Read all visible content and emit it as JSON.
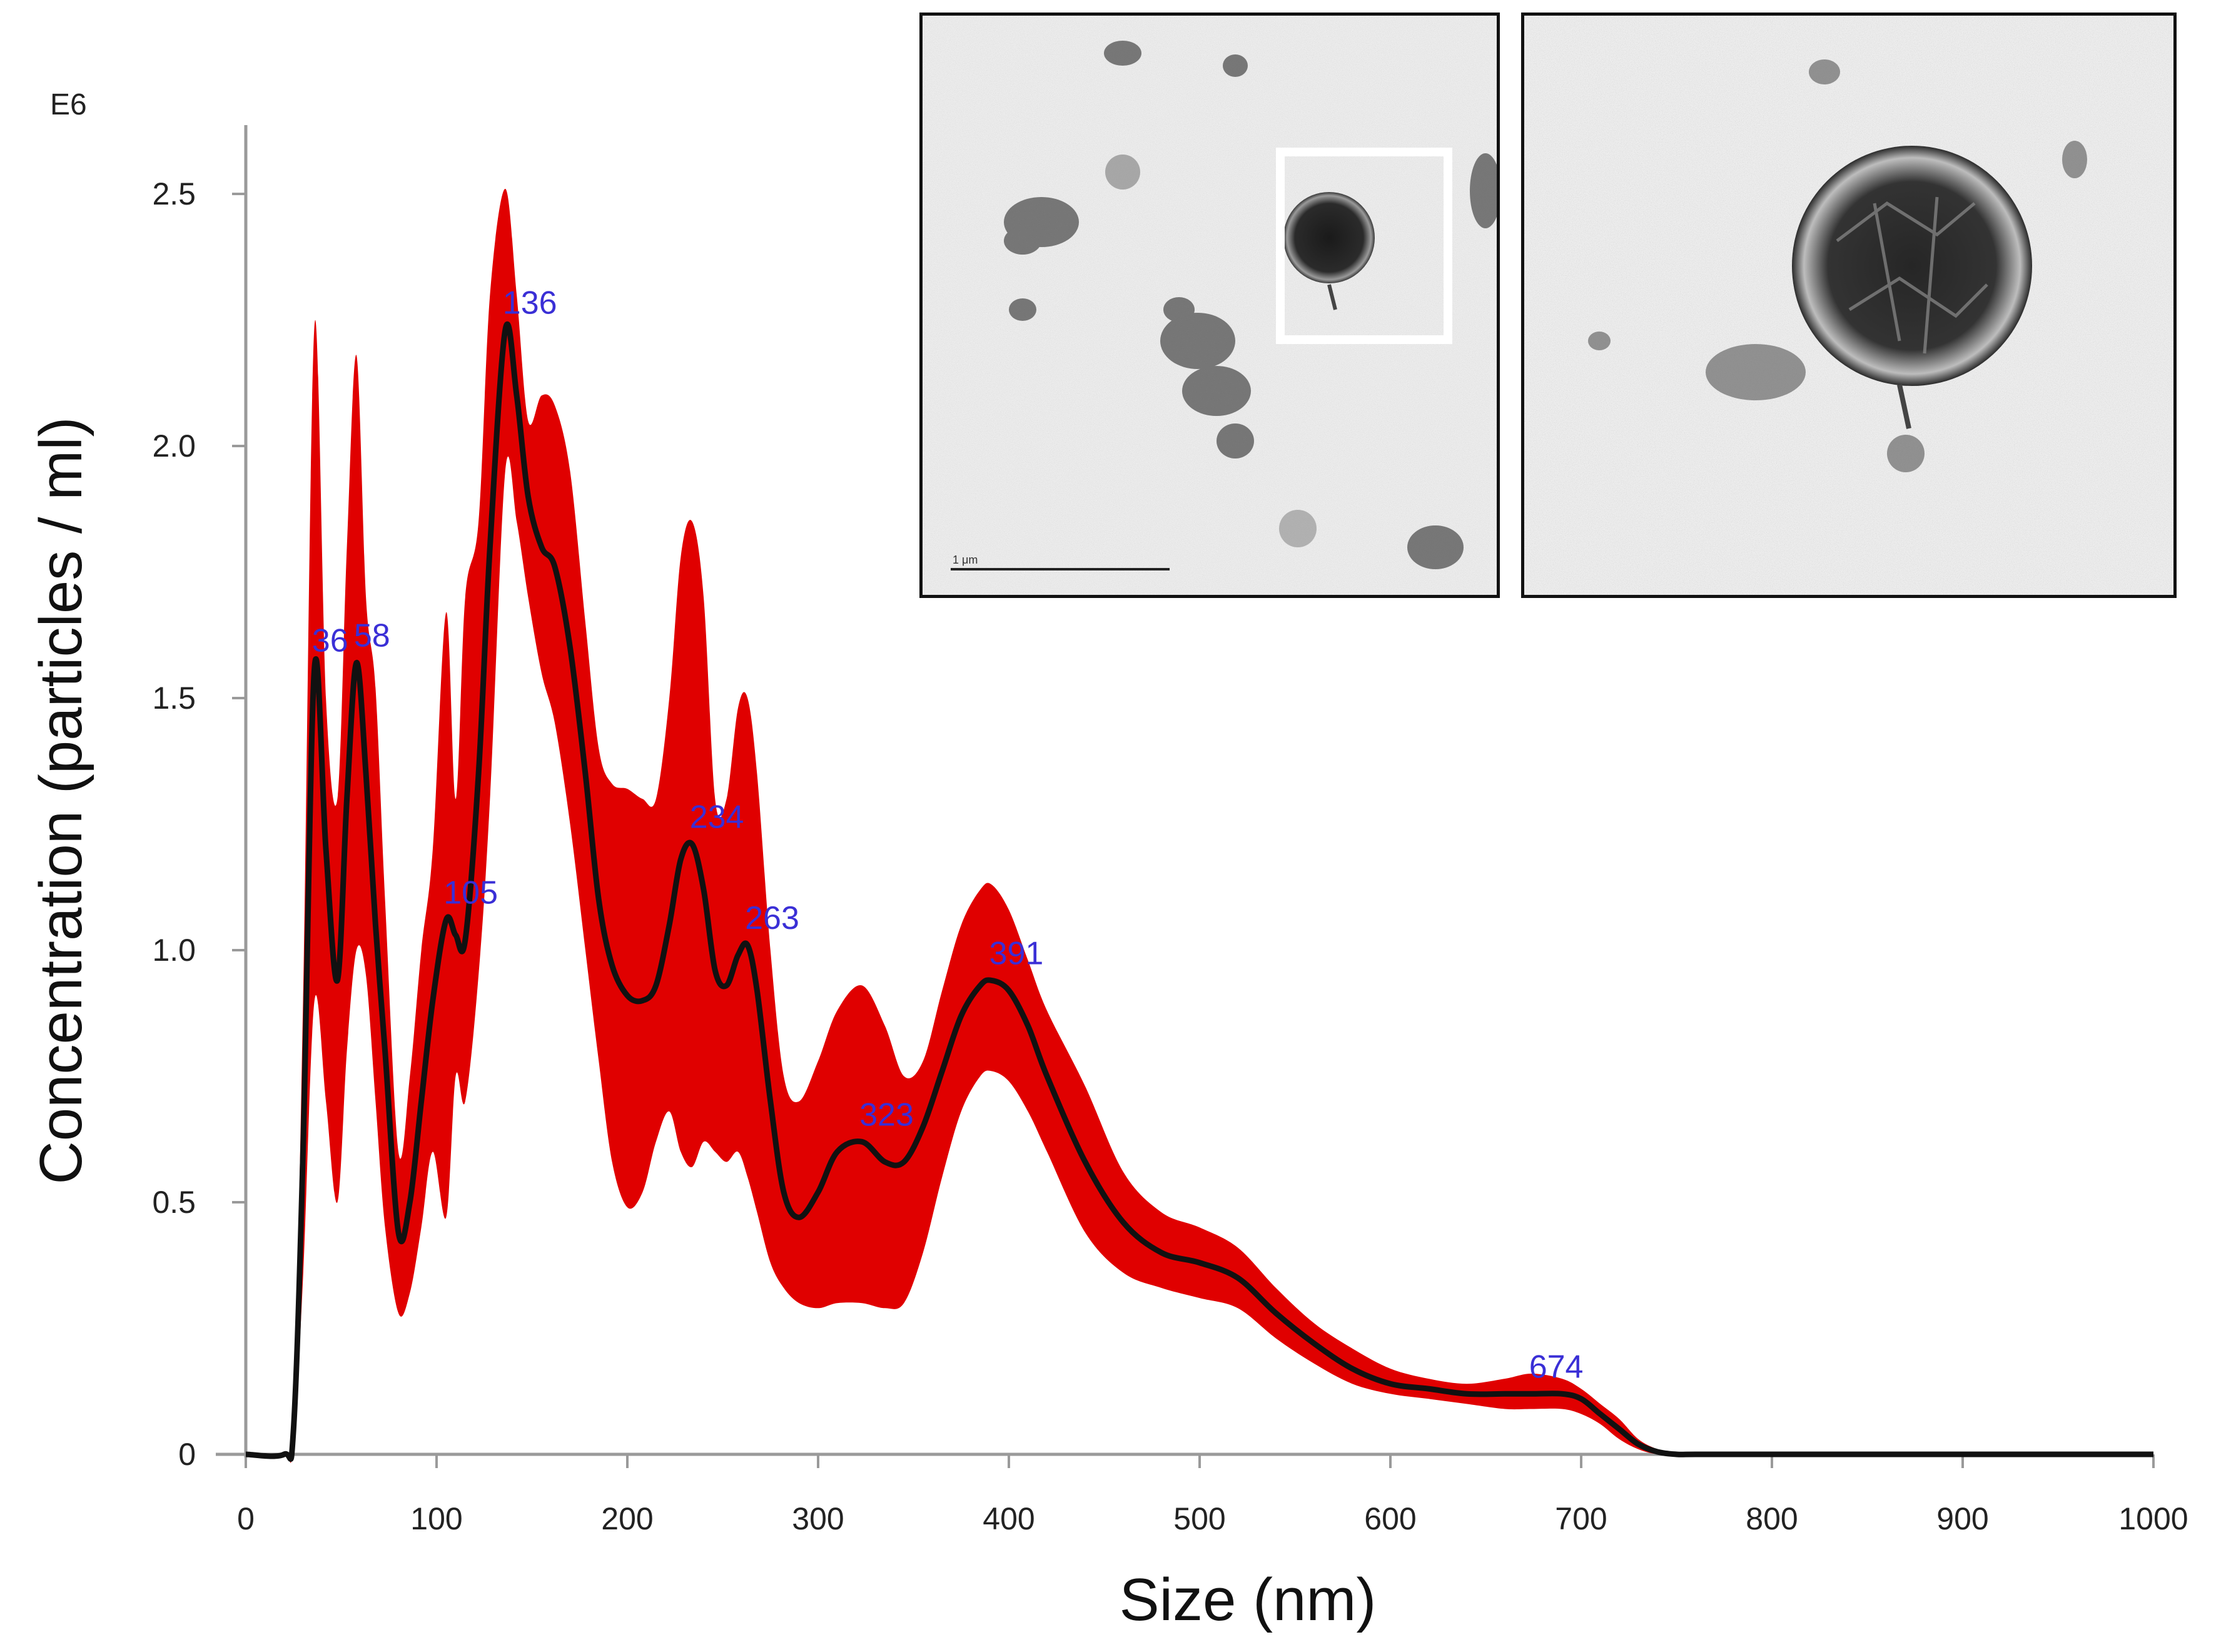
{
  "chart_data": {
    "type": "area",
    "title": "",
    "xlabel": "Size (nm)",
    "ylabel": "Concentration (particles / ml)",
    "y_multiplier_label": "E6",
    "xlim": [
      0,
      1000
    ],
    "ylim": [
      0,
      2.5
    ],
    "xticks": [
      0,
      100,
      200,
      300,
      400,
      500,
      600,
      700,
      800,
      900,
      1000
    ],
    "yticks": [
      0,
      0.5,
      1.0,
      1.5,
      2.0,
      2.5
    ],
    "ytick_labels": [
      "0",
      "0.5",
      "1.0",
      "1.5",
      "2.0",
      "2.5"
    ],
    "grid": false,
    "series": [
      {
        "x": [
          0,
          20,
          25,
          30,
          36,
          42,
          48,
          53,
          58,
          63,
          68,
          73,
          80,
          86,
          92,
          98,
          105,
          110,
          115,
          122,
          128,
          136,
          142,
          148,
          155,
          162,
          170,
          178,
          185,
          192,
          200,
          208,
          215,
          222,
          228,
          234,
          240,
          246,
          252,
          258,
          263,
          268,
          275,
          282,
          290,
          300,
          310,
          323,
          335,
          345,
          355,
          365,
          375,
          385,
          391,
          400,
          410,
          420,
          440,
          460,
          480,
          500,
          520,
          540,
          560,
          580,
          600,
          620,
          640,
          660,
          674,
          690,
          700,
          710,
          720,
          730,
          740,
          750,
          760,
          800,
          900,
          1000
        ],
        "mean": [
          0,
          0.0,
          0.05,
          0.6,
          1.56,
          1.2,
          0.94,
          1.3,
          1.57,
          1.35,
          1.05,
          0.8,
          0.44,
          0.5,
          0.7,
          0.9,
          1.06,
          1.03,
          1.02,
          1.35,
          1.8,
          2.23,
          2.1,
          1.9,
          1.8,
          1.76,
          1.6,
          1.35,
          1.1,
          0.97,
          0.91,
          0.9,
          0.93,
          1.05,
          1.18,
          1.21,
          1.12,
          0.96,
          0.93,
          0.99,
          1.01,
          0.92,
          0.7,
          0.52,
          0.47,
          0.52,
          0.6,
          0.62,
          0.58,
          0.58,
          0.65,
          0.76,
          0.87,
          0.93,
          0.94,
          0.92,
          0.85,
          0.75,
          0.58,
          0.46,
          0.4,
          0.38,
          0.35,
          0.28,
          0.22,
          0.17,
          0.14,
          0.13,
          0.12,
          0.12,
          0.12,
          0.12,
          0.11,
          0.08,
          0.05,
          0.02,
          0.005,
          0.0,
          0.0,
          0.0,
          0.0,
          0.0
        ],
        "upper": [
          0,
          0.0,
          0.07,
          0.9,
          2.24,
          1.5,
          1.3,
          1.8,
          2.18,
          1.7,
          1.52,
          1.1,
          0.6,
          0.75,
          1.0,
          1.2,
          1.67,
          1.3,
          1.7,
          1.85,
          2.3,
          2.51,
          2.3,
          2.05,
          2.1,
          2.08,
          1.95,
          1.65,
          1.4,
          1.33,
          1.32,
          1.3,
          1.3,
          1.5,
          1.78,
          1.85,
          1.7,
          1.3,
          1.3,
          1.48,
          1.5,
          1.35,
          1.0,
          0.75,
          0.7,
          0.78,
          0.88,
          0.93,
          0.85,
          0.75,
          0.78,
          0.92,
          1.05,
          1.12,
          1.13,
          1.08,
          0.98,
          0.88,
          0.73,
          0.56,
          0.48,
          0.45,
          0.41,
          0.33,
          0.26,
          0.21,
          0.17,
          0.15,
          0.14,
          0.15,
          0.16,
          0.15,
          0.13,
          0.1,
          0.07,
          0.03,
          0.01,
          0.0,
          0.0,
          0.0,
          0.0,
          0.0
        ],
        "lower": [
          0,
          0.0,
          0.03,
          0.35,
          0.9,
          0.7,
          0.5,
          0.8,
          1.0,
          0.95,
          0.7,
          0.45,
          0.28,
          0.32,
          0.45,
          0.6,
          0.47,
          0.75,
          0.7,
          0.95,
          1.3,
          1.95,
          1.85,
          1.7,
          1.55,
          1.45,
          1.25,
          1.0,
          0.78,
          0.58,
          0.49,
          0.52,
          0.62,
          0.68,
          0.6,
          0.57,
          0.62,
          0.6,
          0.58,
          0.6,
          0.55,
          0.48,
          0.38,
          0.33,
          0.3,
          0.29,
          0.3,
          0.3,
          0.29,
          0.3,
          0.4,
          0.55,
          0.68,
          0.75,
          0.76,
          0.74,
          0.68,
          0.6,
          0.44,
          0.36,
          0.33,
          0.31,
          0.29,
          0.23,
          0.18,
          0.14,
          0.12,
          0.11,
          0.1,
          0.09,
          0.09,
          0.09,
          0.08,
          0.06,
          0.03,
          0.01,
          0.0,
          0.0,
          0.0,
          0.0,
          0.0,
          0.0
        ]
      }
    ],
    "peak_labels": [
      {
        "x": 36,
        "y": 1.56,
        "text": "36"
      },
      {
        "x": 58,
        "y": 1.57,
        "text": "58"
      },
      {
        "x": 105,
        "y": 1.06,
        "text": "105"
      },
      {
        "x": 136,
        "y": 2.23,
        "text": "136"
      },
      {
        "x": 234,
        "y": 1.21,
        "text": "234"
      },
      {
        "x": 263,
        "y": 1.01,
        "text": "263"
      },
      {
        "x": 323,
        "y": 0.62,
        "text": "323"
      },
      {
        "x": 391,
        "y": 0.94,
        "text": "391"
      },
      {
        "x": 674,
        "y": 0.12,
        "text": "674"
      }
    ]
  },
  "insets": [
    {
      "name": "tem-overview",
      "scale_bar_text": "1 μm"
    },
    {
      "name": "tem-zoom"
    }
  ],
  "colors": {
    "band": "#e00000",
    "mean_line": "#111111",
    "peak_label": "#3a2fd6",
    "axis": "#999999"
  }
}
